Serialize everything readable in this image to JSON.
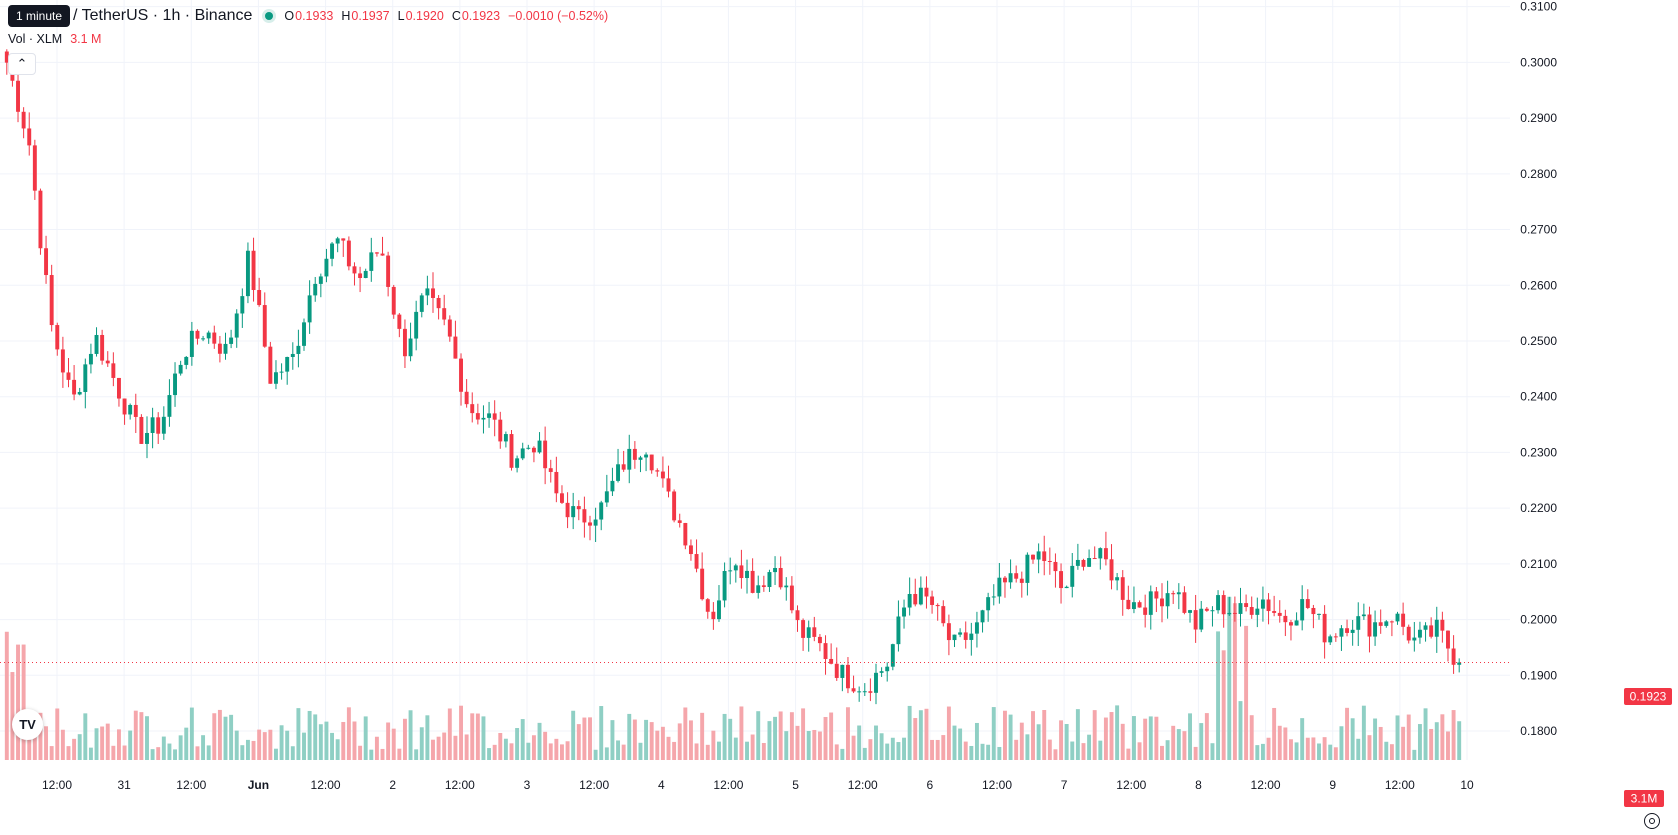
{
  "legend": {
    "tooltip": "1 minute",
    "title": "/ TetherUS · 1h · Binance",
    "open_label": "O",
    "open": "0.1933",
    "high_label": "H",
    "high": "0.1937",
    "low_label": "L",
    "low": "0.1920",
    "close_label": "C",
    "close": "0.1923",
    "change": "−0.0010 (−0.52%)"
  },
  "volume_legend": {
    "label": "Vol · XLM",
    "value": "3.1 M"
  },
  "collapse_icon": "chevron-up-icon",
  "logo_text": "TV",
  "settings_icon": "gear-icon",
  "colors": {
    "up": "#089981",
    "down": "#f23645",
    "up_volume": "#8fcfc4",
    "down_volume": "#f5a6ab",
    "grid": "#f0f3fa",
    "text": "#131722"
  },
  "chart_data": {
    "type": "candlestick",
    "y_axis": {
      "range": [
        0.1748,
        0.3112
      ],
      "ticks": [
        "0.3100",
        "0.3000",
        "0.2900",
        "0.2800",
        "0.2700",
        "0.2600",
        "0.2500",
        "0.2400",
        "0.2300",
        "0.2200",
        "0.2100",
        "0.2000",
        "0.1900",
        "0.1800"
      ]
    },
    "x_axis": {
      "ticks": [
        "12:00",
        "31",
        "12:00",
        "Jun",
        "12:00",
        "2",
        "12:00",
        "3",
        "12:00",
        "4",
        "12:00",
        "5",
        "12:00",
        "6",
        "12:00",
        "7",
        "12:00",
        "8",
        "12:00",
        "9",
        "12:00",
        "10"
      ]
    },
    "last_price": "0.1923",
    "last_volume": "3.1M",
    "key_closes": [
      0.3,
      0.286,
      0.253,
      0.239,
      0.251,
      0.242,
      0.233,
      0.235,
      0.248,
      0.252,
      0.248,
      0.265,
      0.243,
      0.247,
      0.262,
      0.268,
      0.261,
      0.267,
      0.248,
      0.258,
      0.252,
      0.238,
      0.236,
      0.229,
      0.232,
      0.222,
      0.218,
      0.22,
      0.228,
      0.232,
      0.222,
      0.214,
      0.2,
      0.212,
      0.206,
      0.21,
      0.198,
      0.195,
      0.19,
      0.188,
      0.192,
      0.205,
      0.203,
      0.195,
      0.198,
      0.205,
      0.208,
      0.212,
      0.205,
      0.212,
      0.21,
      0.203,
      0.203,
      0.206,
      0.199,
      0.203,
      0.201,
      0.204,
      0.2,
      0.203,
      0.197,
      0.2,
      0.199,
      0.201,
      0.196,
      0.198,
      0.1923
    ]
  }
}
